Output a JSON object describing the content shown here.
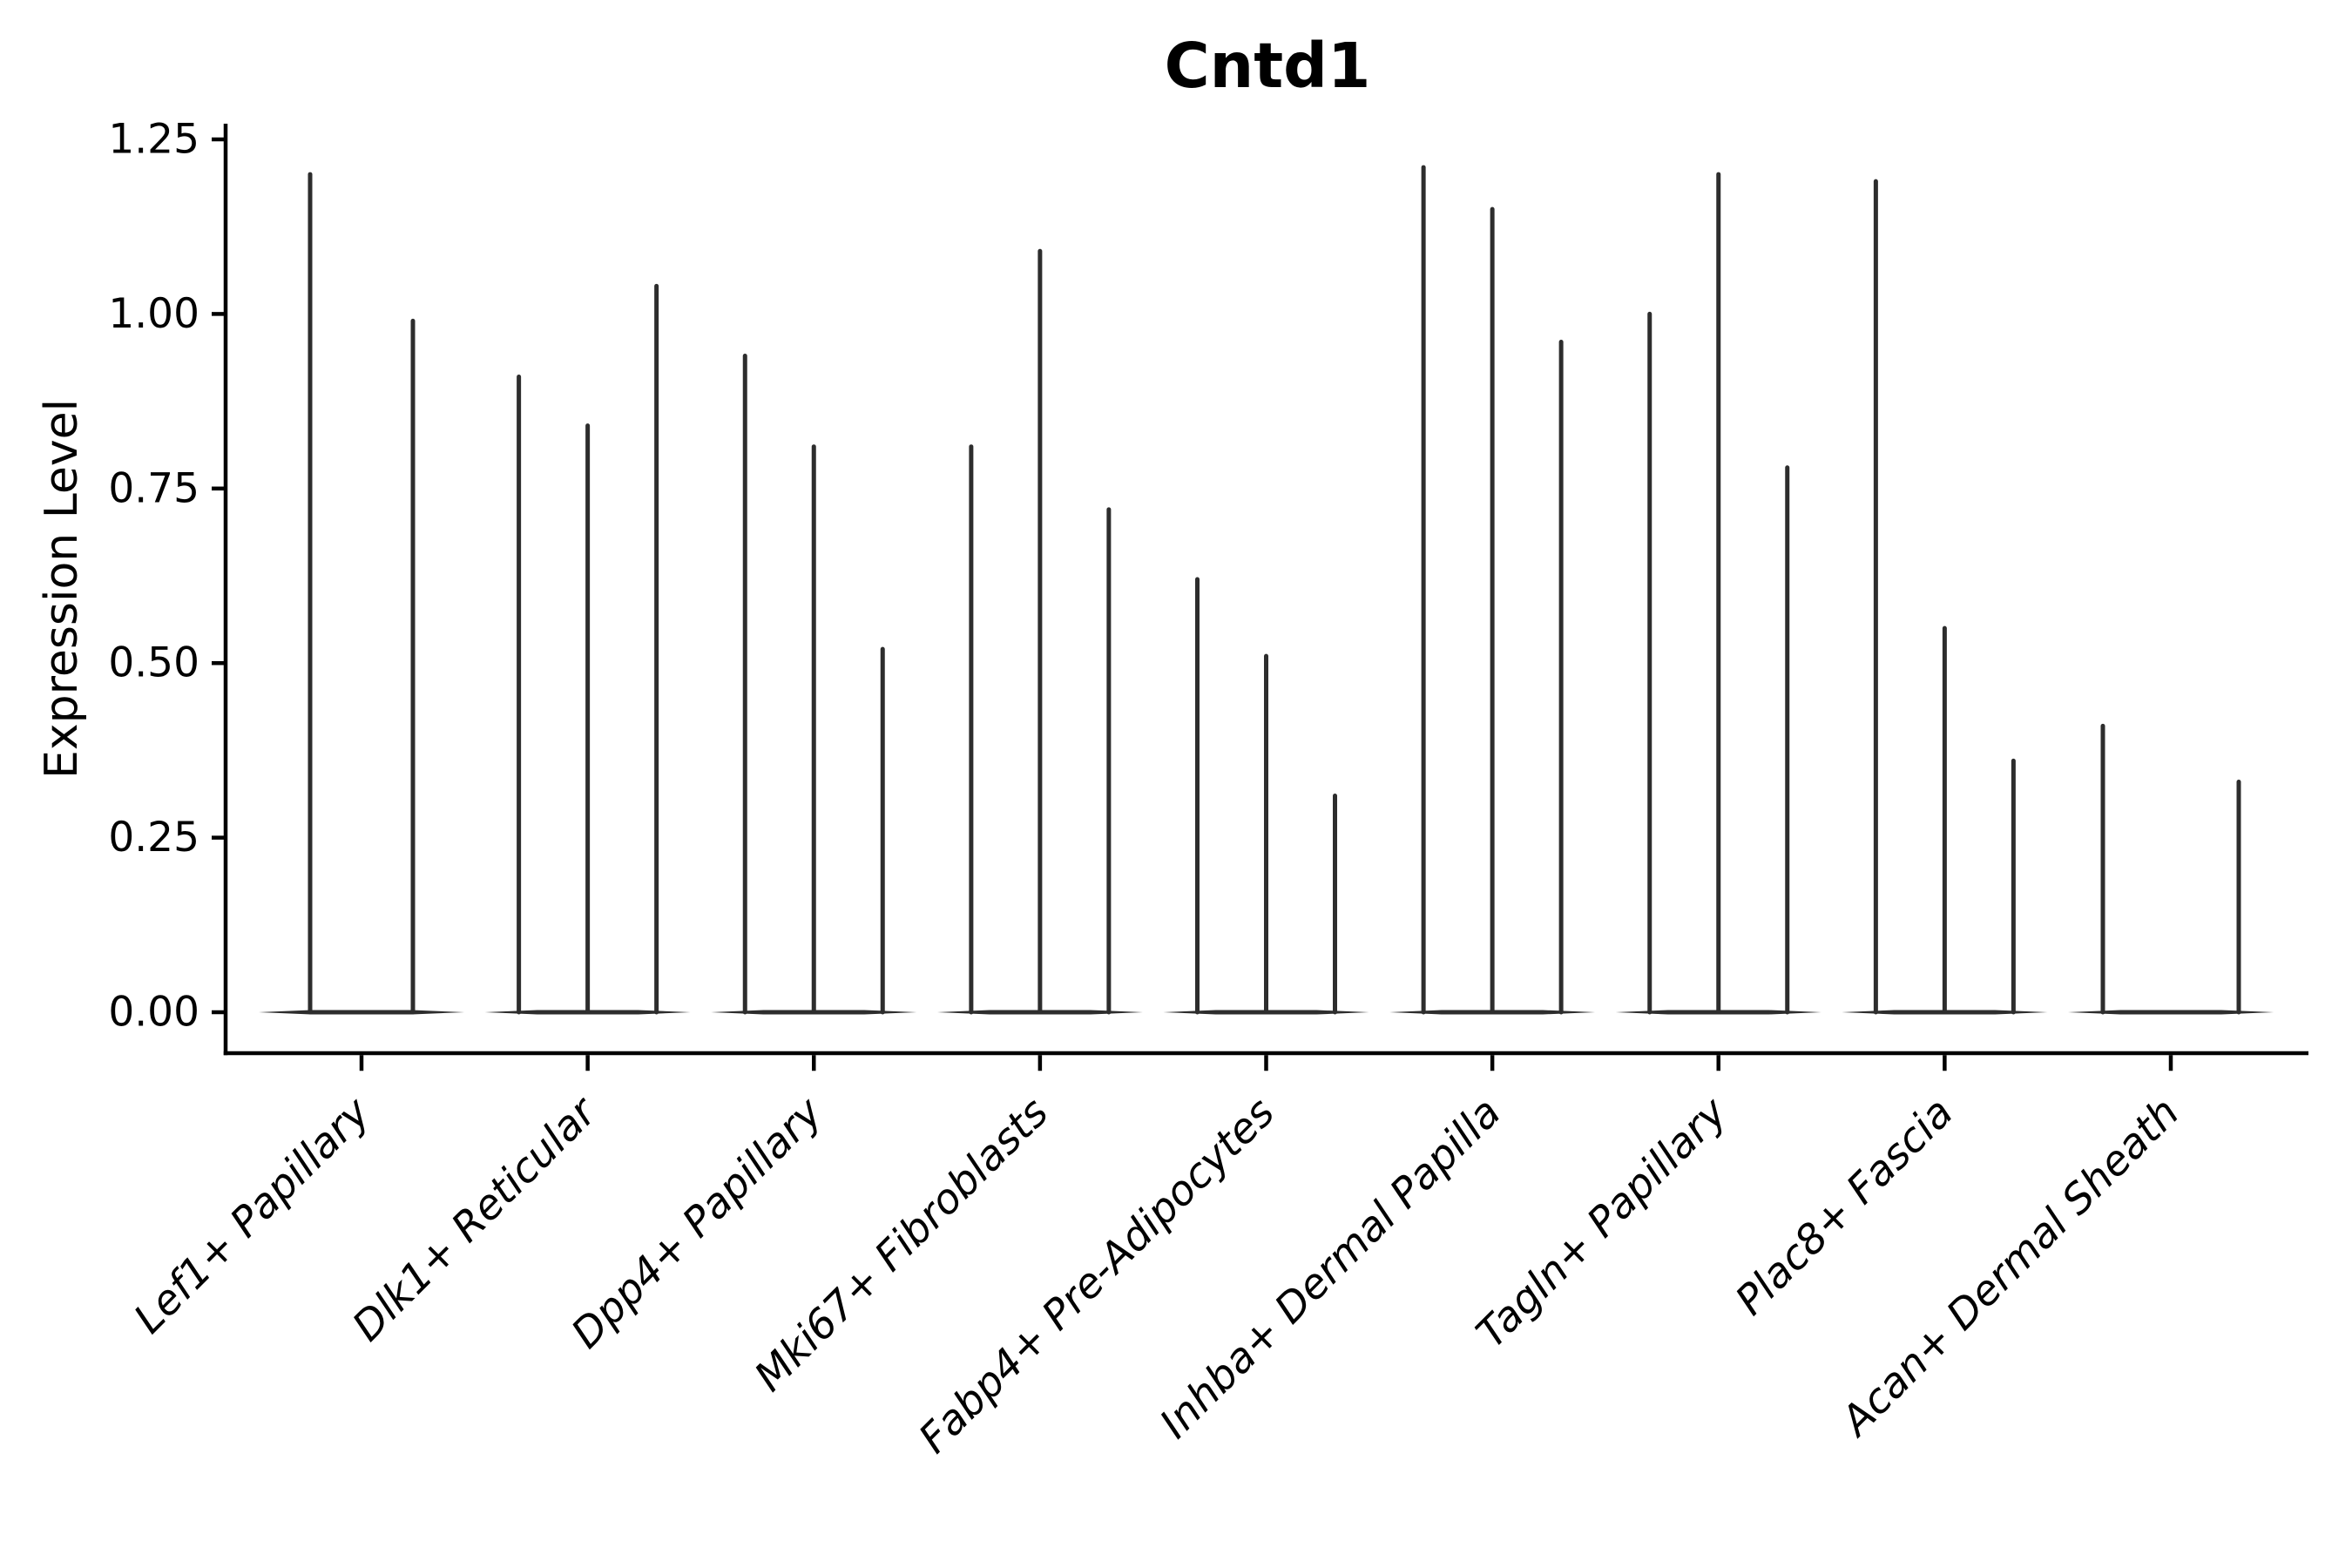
{
  "title": "Cntd1",
  "y_axis": {
    "label": "Expression Level",
    "ticks": [
      "1.25",
      "1.00",
      "0.75",
      "0.50",
      "0.25",
      "0.00"
    ],
    "tick_values": [
      1.25,
      1.0,
      0.75,
      0.5,
      0.25,
      0.0
    ]
  },
  "x_axis": {
    "categories": [
      "Lef1+ Papillary",
      "Dlk1+ Reticular",
      "Dpp4+ Papillary",
      "Mki67+ Fibroblasts",
      "Fabp4+ Pre-Adipocytes",
      "Inhba+ Dermal Papilla",
      "Tagln+ Papillary",
      "Plac8+ Fascia",
      "Acan+ Dermal Sheath"
    ]
  },
  "colors": {
    "violin": "#2d2d2d",
    "axis": "#000000",
    "background": "#ffffff"
  },
  "chart_data": {
    "type": "violin",
    "title": "Cntd1",
    "xlabel": "",
    "ylabel": "Expression Level",
    "ylim": [
      0,
      1.25
    ],
    "grid": false,
    "legend": false,
    "baseline_value": 0,
    "categories": [
      "Lef1+ Papillary",
      "Dlk1+ Reticular",
      "Dpp4+ Papillary",
      "Mki67+ Fibroblasts",
      "Fabp4+ Pre-Adipocytes",
      "Inhba+ Dermal Papilla",
      "Tagln+ Papillary",
      "Plac8+ Fascia",
      "Acan+ Dermal Sheath"
    ],
    "series": [
      {
        "category": "Lef1+ Papillary",
        "violin_maxima": [
          1.2,
          0.99
        ]
      },
      {
        "category": "Dlk1+ Reticular",
        "violin_maxima": [
          0.91,
          0.84,
          1.04
        ]
      },
      {
        "category": "Dpp4+ Papillary",
        "violin_maxima": [
          0.94,
          0.81,
          0.52
        ]
      },
      {
        "category": "Mki67+ Fibroblasts",
        "violin_maxima": [
          0.81,
          1.09,
          0.72
        ]
      },
      {
        "category": "Fabp4+ Pre-Adipocytes",
        "violin_maxima": [
          0.62,
          0.51,
          0.31
        ]
      },
      {
        "category": "Inhba+ Dermal Papilla",
        "violin_maxima": [
          1.21,
          1.15,
          0.96
        ]
      },
      {
        "category": "Tagln+ Papillary",
        "violin_maxima": [
          1.0,
          1.2,
          0.78
        ]
      },
      {
        "category": "Plac8+ Fascia",
        "violin_maxima": [
          1.19,
          0.55,
          0.36
        ]
      },
      {
        "category": "Acan+ Dermal Sheath",
        "violin_maxima": [
          0.41,
          0.33
        ]
      }
    ]
  }
}
